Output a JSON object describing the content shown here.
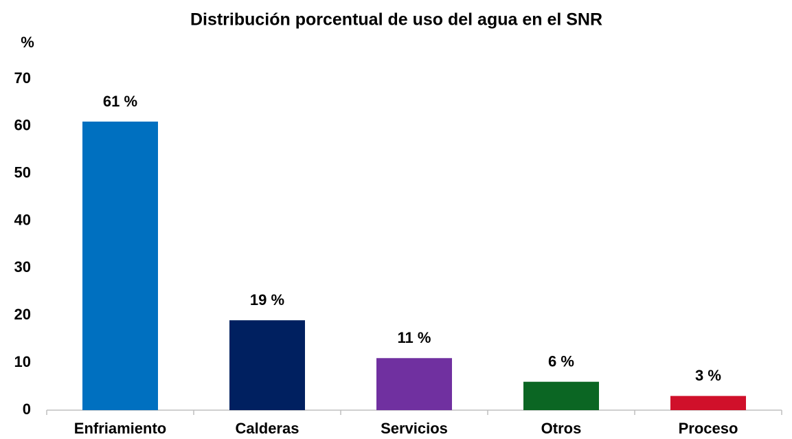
{
  "chart_data": {
    "type": "bar",
    "title": "Distribución porcentual de uso del agua en el SNR",
    "y_label": "%",
    "categories": [
      "Enfriamiento",
      "Calderas",
      "Servicios",
      "Otros",
      "Proceso"
    ],
    "values": [
      61,
      19,
      11,
      6,
      3
    ],
    "value_labels": [
      "61 %",
      "19 %",
      "11 %",
      "6 %",
      "3 %"
    ],
    "colors": [
      "#0070c0",
      "#002060",
      "#7030a0",
      "#0b6623",
      "#d0102a"
    ],
    "ylim": [
      0,
      70
    ],
    "yticks": [
      0,
      10,
      20,
      30,
      40,
      50,
      60,
      70
    ],
    "grid": false
  }
}
